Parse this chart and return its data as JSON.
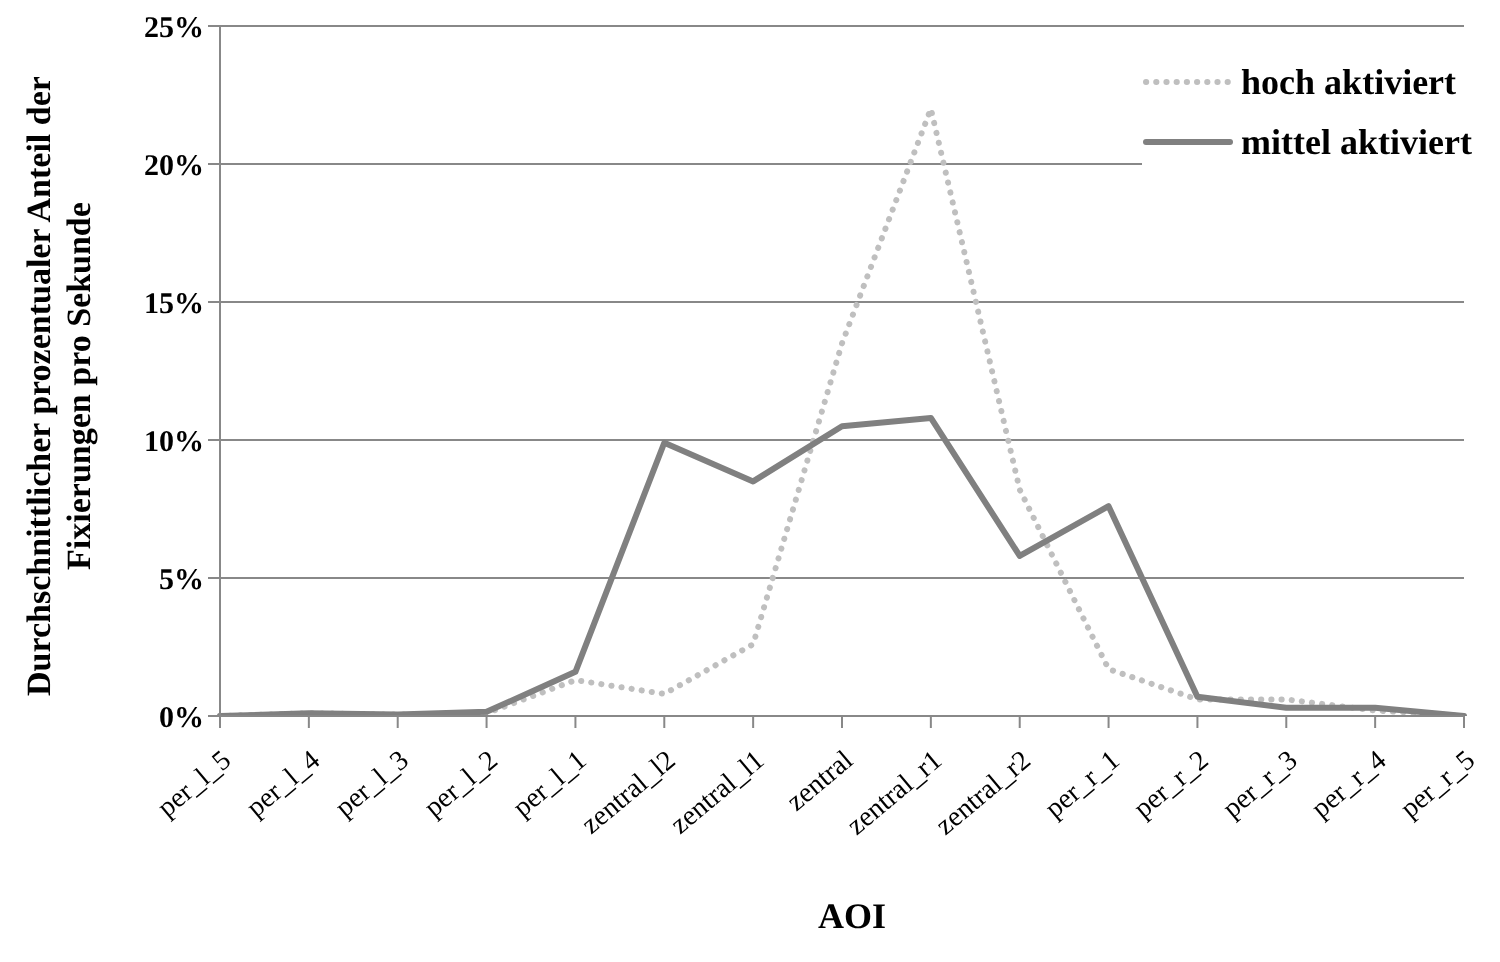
{
  "chart_data": {
    "type": "line",
    "xlabel": "AOI",
    "ylabel": "Durchschnittlicher prozentualer Anteil der Fixierungen pro Sekunde",
    "categories": [
      "per_l_5",
      "per_l_4",
      "per_l_3",
      "per_l_2",
      "per_l_1",
      "zentral_l2",
      "zentral_l1",
      "zentral",
      "zentral_r1",
      "zentral_r2",
      "per_r_1",
      "per_r_2",
      "per_r_3",
      "per_r_4",
      "per_r_5"
    ],
    "series": [
      {
        "name": "hoch aktiviert",
        "color": "#bfbfbf",
        "line_style": "dotted",
        "values": [
          0,
          0.1,
          0.05,
          0.1,
          1.3,
          0.8,
          2.6,
          13.5,
          22,
          8.2,
          1.7,
          0.6,
          0.6,
          0.2,
          0
        ]
      },
      {
        "name": "mittel aktiviert",
        "color": "#808080",
        "line_style": "solid",
        "values": [
          0,
          0.1,
          0.05,
          0.15,
          1.6,
          9.9,
          8.5,
          10.5,
          10.8,
          5.8,
          7.6,
          0.7,
          0.3,
          0.3,
          0
        ]
      }
    ],
    "ylim": [
      0,
      25
    ],
    "yticks": [
      {
        "value": 0,
        "label": "0%"
      },
      {
        "value": 5,
        "label": "5%"
      },
      {
        "value": 10,
        "label": "10%"
      },
      {
        "value": 15,
        "label": "15%"
      },
      {
        "value": 20,
        "label": "20%"
      },
      {
        "value": 25,
        "label": "25%"
      }
    ],
    "grid": "y",
    "legend": "top right",
    "marker": "none"
  }
}
